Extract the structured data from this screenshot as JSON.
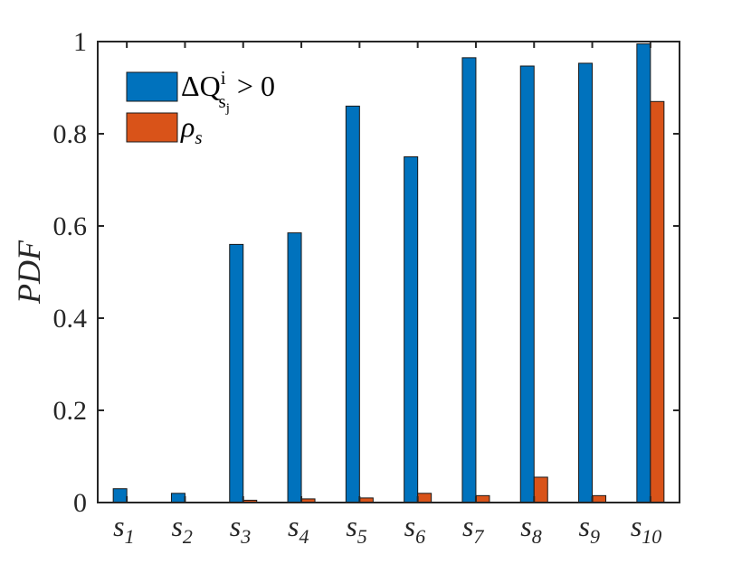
{
  "chart_data": {
    "type": "bar",
    "ylabel": "PDF",
    "xlabel": "",
    "ylim": [
      0,
      1
    ],
    "yticks": [
      "0",
      "0.2",
      "0.4",
      "0.6",
      "0.8",
      "1"
    ],
    "categories": [
      {
        "base": "s",
        "sub": "1"
      },
      {
        "base": "s",
        "sub": "2"
      },
      {
        "base": "s",
        "sub": "3"
      },
      {
        "base": "s",
        "sub": "4"
      },
      {
        "base": "s",
        "sub": "5"
      },
      {
        "base": "s",
        "sub": "6"
      },
      {
        "base": "s",
        "sub": "7"
      },
      {
        "base": "s",
        "sub": "8"
      },
      {
        "base": "s",
        "sub": "9"
      },
      {
        "base": "s",
        "sub": "10"
      }
    ],
    "series": [
      {
        "name": "ΔQ^i_{s_j} > 0",
        "color": "#0072BD",
        "values": [
          0.03,
          0.02,
          0.56,
          0.585,
          0.86,
          0.75,
          0.965,
          0.947,
          0.953,
          0.995
        ]
      },
      {
        "name": "ρ_s",
        "color": "#D95319",
        "values": [
          0.0,
          0.0,
          0.005,
          0.008,
          0.01,
          0.02,
          0.015,
          0.055,
          0.015,
          0.87
        ]
      }
    ],
    "legend": {
      "position": "top-left",
      "entries": [
        {
          "main": "ΔQ",
          "sup": "i",
          "sub": "s",
          "subsub": "j",
          "tail": " > 0"
        },
        {
          "main": "ρ",
          "sub": "s"
        }
      ]
    },
    "grid": false
  }
}
